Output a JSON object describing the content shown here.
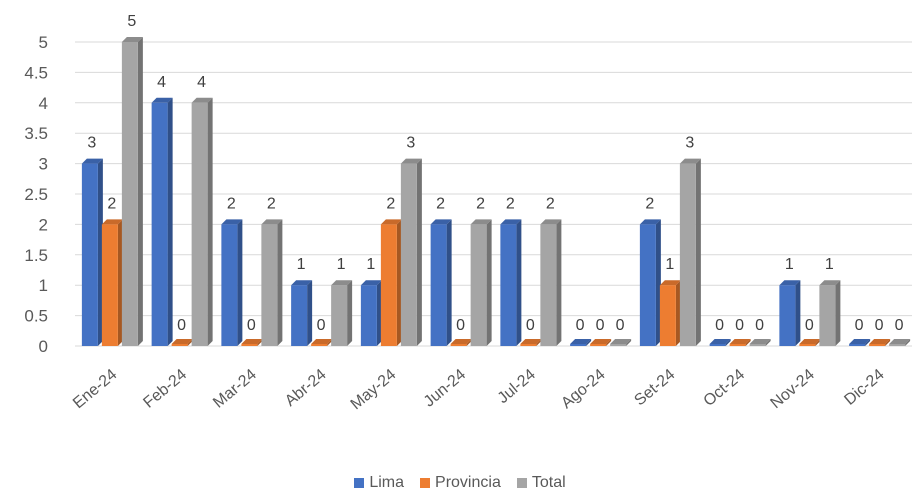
{
  "chart_data": {
    "type": "bar",
    "categories": [
      "Ene-24",
      "Feb-24",
      "Mar-24",
      "Abr-24",
      "May-24",
      "Jun-24",
      "Jul-24",
      "Ago-24",
      "Set-24",
      "Oct-24",
      "Nov-24",
      "Dic-24"
    ],
    "series": [
      {
        "name": "Lima",
        "values": [
          3,
          4,
          2,
          1,
          1,
          2,
          2,
          0,
          2,
          0,
          1,
          0
        ],
        "color": "#4472C4"
      },
      {
        "name": "Provincia",
        "values": [
          2,
          0,
          0,
          0,
          2,
          0,
          0,
          0,
          1,
          0,
          0,
          0
        ],
        "color": "#ED7D31"
      },
      {
        "name": "Total",
        "values": [
          5,
          4,
          2,
          1,
          3,
          2,
          2,
          0,
          3,
          0,
          1,
          0
        ],
        "color": "#A5A5A5"
      }
    ],
    "ylim": [
      0,
      5
    ],
    "yticks": [
      "0",
      "0.5",
      "1",
      "1.5",
      "2",
      "2.5",
      "3",
      "3.5",
      "4",
      "4.5",
      "5"
    ],
    "grid": true,
    "legend_position": "bottom"
  }
}
